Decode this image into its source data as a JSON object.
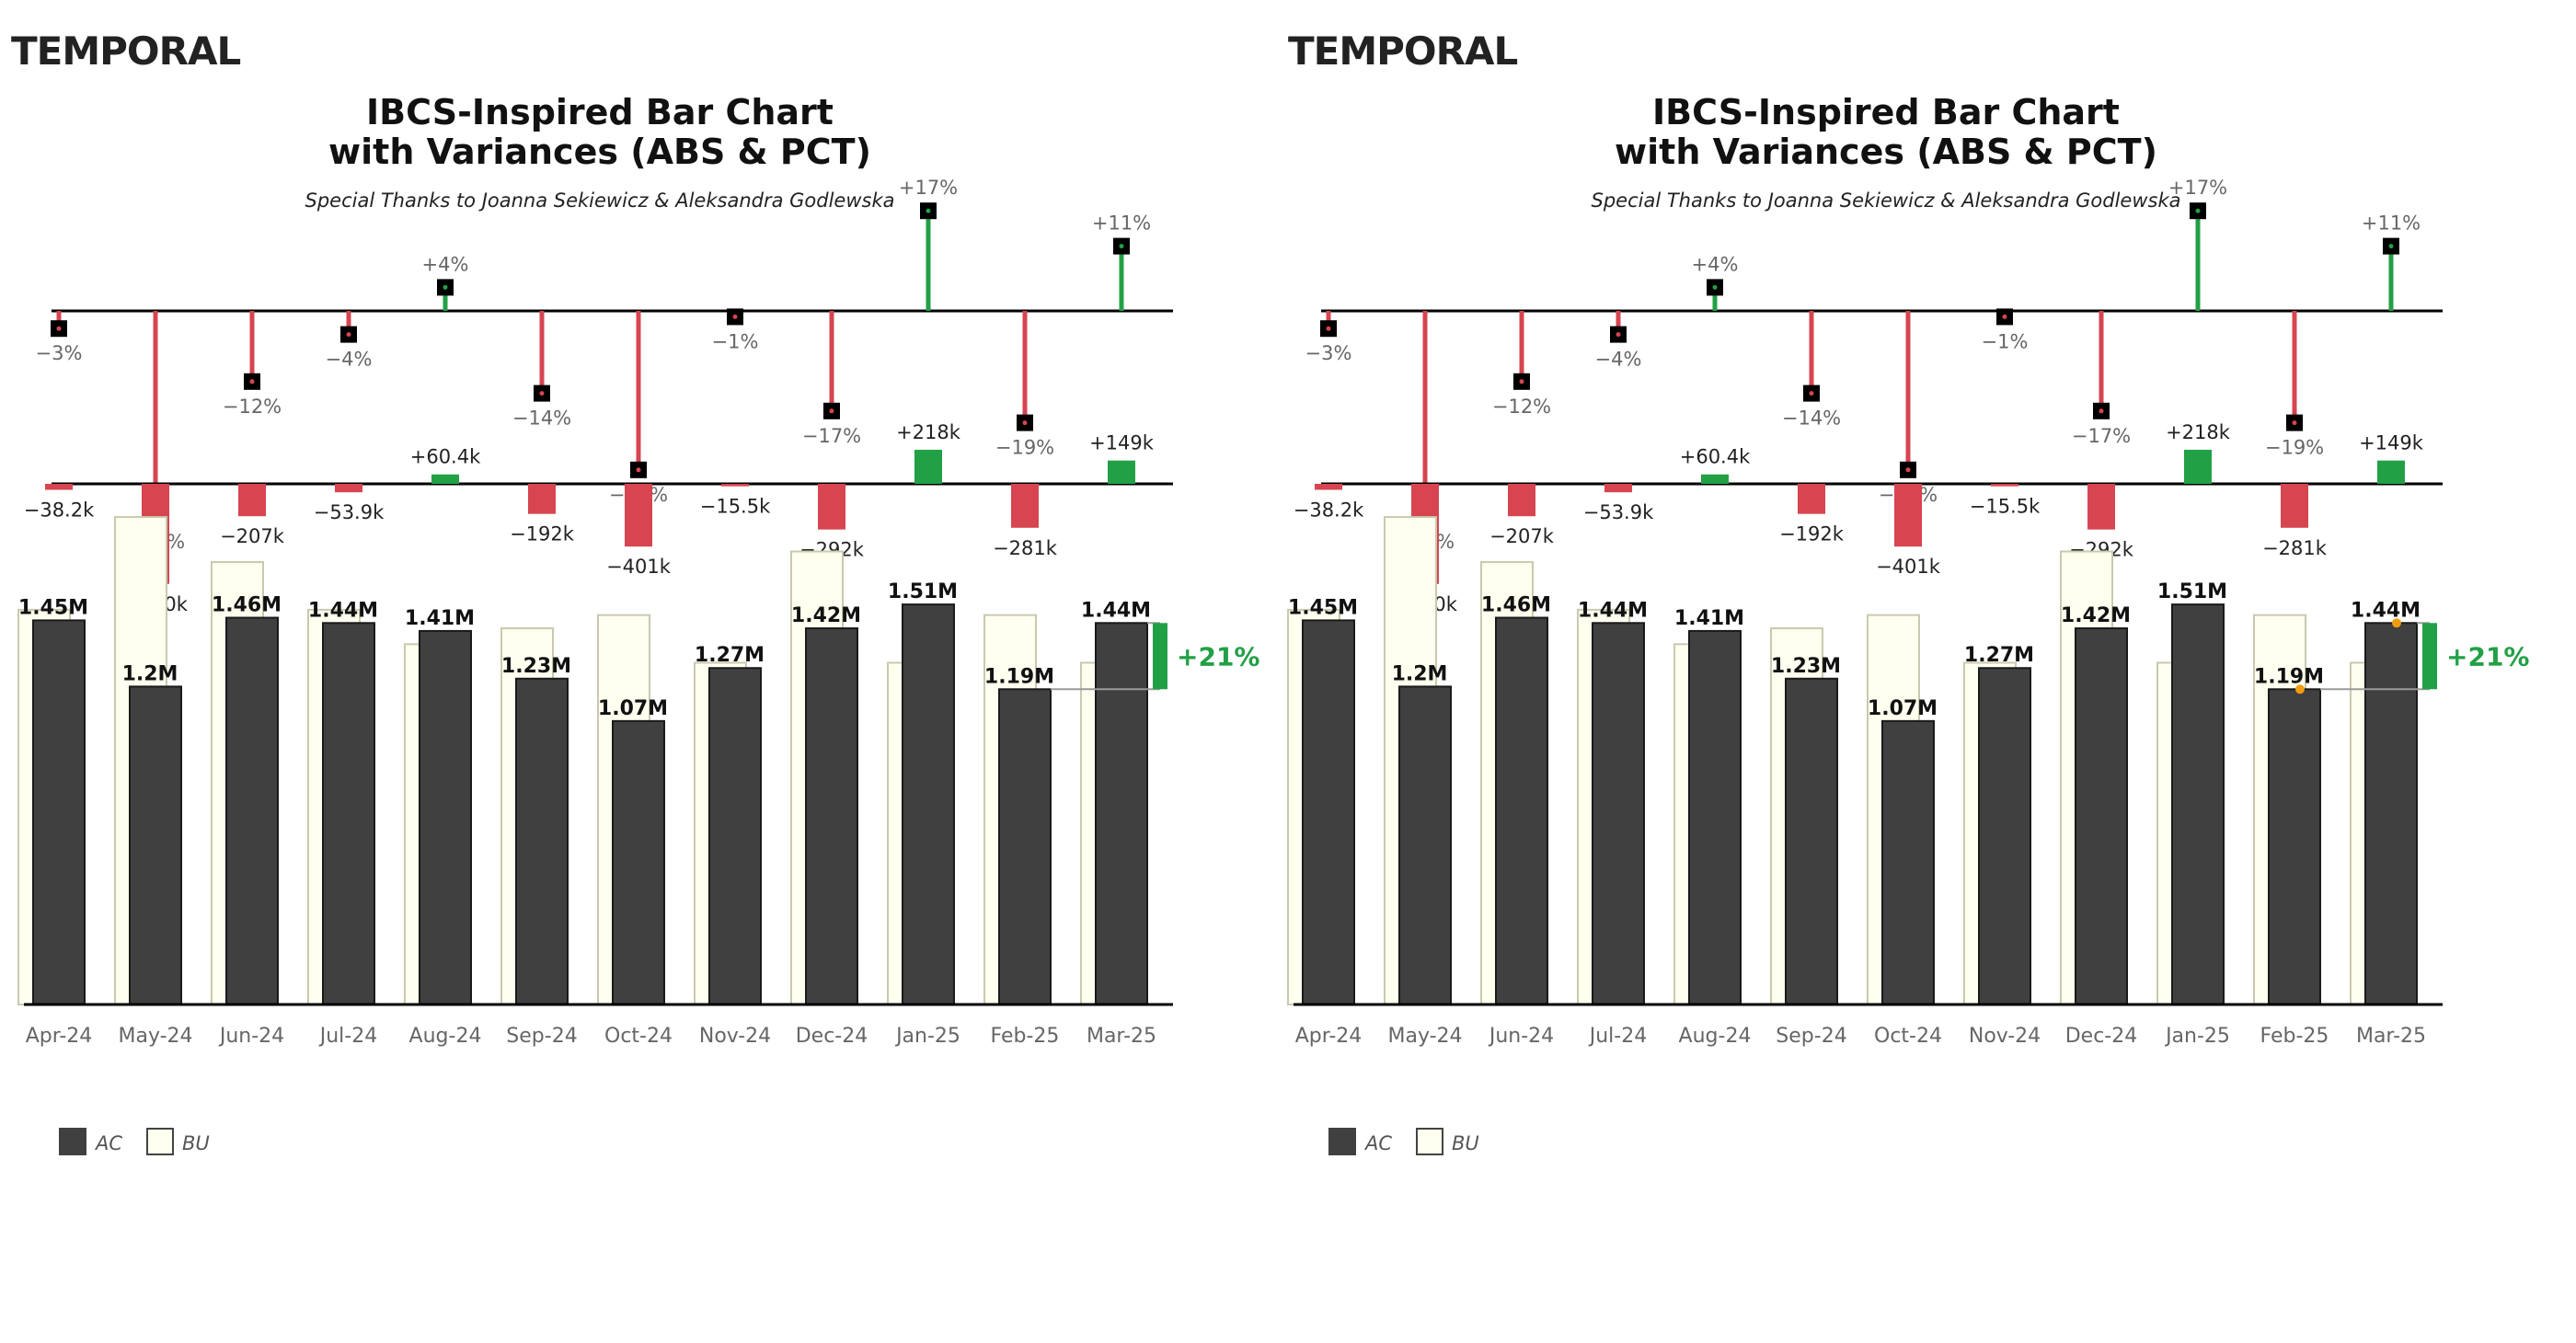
{
  "logo": "TEMPORAL",
  "title_line1": "IBCS-Inspired Bar Chart",
  "title_line2": "with Variances (ABS & PCT)",
  "subtitle": "Special Thanks to Joanna Sekiewicz & Aleksandra Godlewska",
  "legend": {
    "ac": "AC",
    "bu": "BU"
  },
  "colors": {
    "ac": "#404040",
    "bu": "#fffff0",
    "positive": "#22a046",
    "negative": "#d64550",
    "highlight": "#f39c12"
  },
  "chart_data": {
    "type": "bar",
    "categories": [
      "Apr-24",
      "May-24",
      "Jun-24",
      "Jul-24",
      "Aug-24",
      "Sep-24",
      "Oct-24",
      "Nov-24",
      "Dec-24",
      "Jan-25",
      "Feb-25",
      "Mar-25"
    ],
    "series": [
      {
        "name": "AC",
        "values": [
          1.45,
          1.2,
          1.46,
          1.44,
          1.41,
          1.23,
          1.07,
          1.27,
          1.42,
          1.51,
          1.19,
          1.44
        ],
        "labels": [
          "1.45M",
          "1.2M",
          "1.46M",
          "1.44M",
          "1.41M",
          "1.23M",
          "1.07M",
          "1.27M",
          "1.42M",
          "1.51M",
          "1.19M",
          "1.44M"
        ]
      },
      {
        "name": "BU",
        "values": [
          1.49,
          1.84,
          1.67,
          1.49,
          1.36,
          1.42,
          1.47,
          1.29,
          1.71,
          1.29,
          1.47,
          1.29
        ]
      }
    ],
    "abs_variance": [
      -38.2,
      -640,
      -207,
      -53.9,
      60.4,
      -192,
      -401,
      -15.5,
      -292,
      218,
      -281,
      149
    ],
    "abs_variance_labels": [
      "−38.2k",
      "−640k",
      "−207k",
      "−53.9k",
      "+60.4k",
      "−192k",
      "−401k",
      "−15.5k",
      "−292k",
      "+218k",
      "−281k",
      "+149k"
    ],
    "pct_variance": [
      -3,
      -35,
      -12,
      -4,
      4,
      -14,
      -27,
      -1,
      -17,
      17,
      -19,
      11
    ],
    "pct_variance_labels": [
      "−3%",
      "−35%",
      "−12%",
      "−4%",
      "+4%",
      "−14%",
      "−27%",
      "−1%",
      "−17%",
      "+17%",
      "−19%",
      "+11%"
    ],
    "mom_change_label": "+21%",
    "mom_change_from": "Feb-25",
    "mom_change_to": "Mar-25",
    "ylim": [
      0,
      1.9
    ]
  }
}
